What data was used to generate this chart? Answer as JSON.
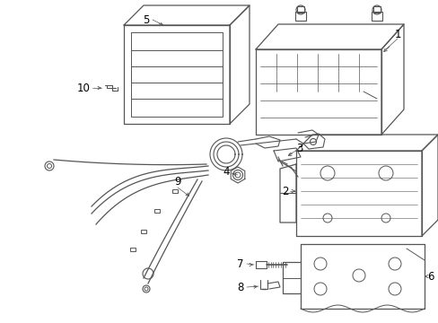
{
  "background_color": "#ffffff",
  "line_color": "#555555",
  "label_color": "#000000",
  "fig_width": 4.89,
  "fig_height": 3.6,
  "dpi": 100
}
